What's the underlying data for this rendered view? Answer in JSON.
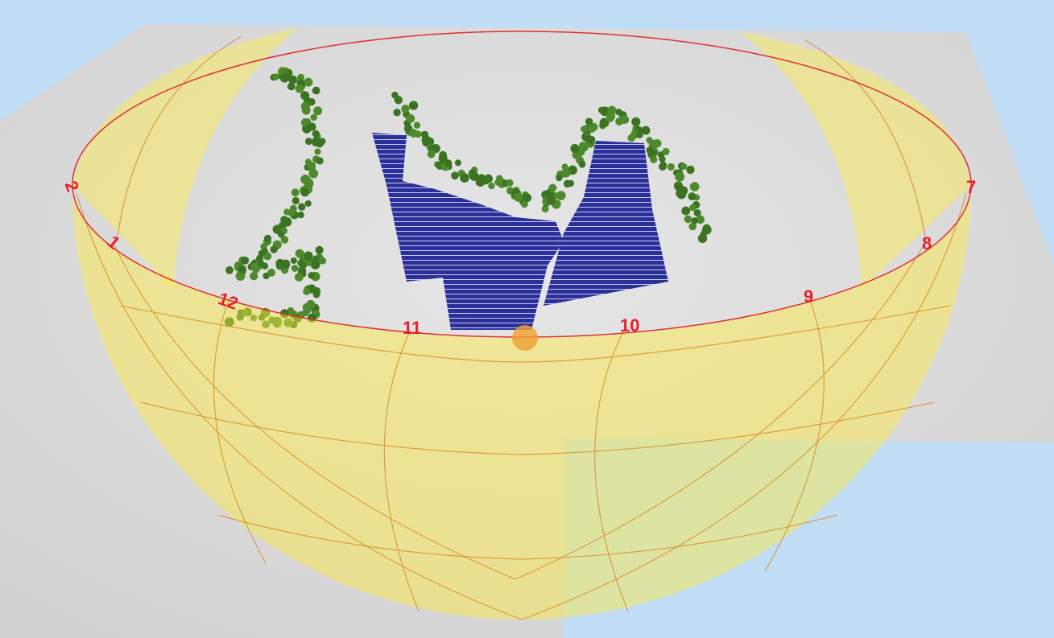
{
  "hour_labels": {
    "h12": "12",
    "h11": "11",
    "h10": "10",
    "h9": "9",
    "h8": "8",
    "h7": "7",
    "h1": "1",
    "h2": "2"
  }
}
